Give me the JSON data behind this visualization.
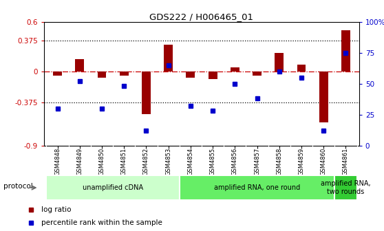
{
  "title": "GDS222 / H006465_01",
  "samples": [
    "GSM4848",
    "GSM4849",
    "GSM4850",
    "GSM4851",
    "GSM4852",
    "GSM4853",
    "GSM4854",
    "GSM4855",
    "GSM4856",
    "GSM4857",
    "GSM4858",
    "GSM4859",
    "GSM4860",
    "GSM4861"
  ],
  "log_ratio": [
    -0.05,
    0.15,
    -0.08,
    -0.05,
    -0.52,
    0.32,
    -0.08,
    -0.09,
    0.05,
    -0.05,
    0.22,
    0.08,
    -0.62,
    0.5
  ],
  "percentile": [
    30,
    52,
    30,
    48,
    12,
    65,
    32,
    28,
    50,
    38,
    60,
    55,
    12,
    75
  ],
  "bar_color": "#990000",
  "dot_color": "#0000cc",
  "left_ylim": [
    -0.9,
    0.6
  ],
  "right_ylim": [
    0,
    100
  ],
  "left_yticks": [
    -0.9,
    -0.375,
    0,
    0.375,
    0.6
  ],
  "left_yticklabels": [
    "-0.9",
    "-0.375",
    "0",
    "0.375",
    "0.6"
  ],
  "right_yticks": [
    0,
    25,
    50,
    75,
    100
  ],
  "right_yticklabels": [
    "0",
    "25",
    "50",
    "75",
    "100%"
  ],
  "dotted_lines": [
    -0.375,
    0.375
  ],
  "zero_line_color": "#cc0000",
  "background_color": "#ffffff",
  "protocol_label": "protocol",
  "legend_items": [
    {
      "label": "log ratio",
      "color": "#990000"
    },
    {
      "label": "percentile rank within the sample",
      "color": "#0000cc"
    }
  ],
  "tick_bg_color": "#cccccc",
  "group_configs": [
    [
      0,
      5,
      "unamplified cDNA",
      "#ccffcc"
    ],
    [
      6,
      12,
      "amplified RNA, one round",
      "#66ee66"
    ],
    [
      13,
      13,
      "amplified RNA,\ntwo rounds",
      "#33cc33"
    ]
  ]
}
